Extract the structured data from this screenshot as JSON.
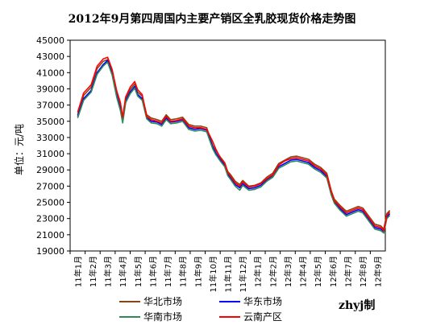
{
  "chart_data": {
    "type": "line",
    "title": "2012年9月第四周国内主要产销区全乳胶现货价格走势图",
    "ylabel": "单位：元/吨",
    "note": "zhyj制",
    "ylim": [
      19000,
      45000
    ],
    "yticks": [
      19000,
      21000,
      23000,
      25000,
      27000,
      29000,
      31000,
      33000,
      35000,
      37000,
      39000,
      41000,
      43000,
      45000
    ],
    "grid": false,
    "legend_position": "bottom",
    "x": [
      "11年1月",
      "11年2月",
      "11年3月",
      "11年4月",
      "11年5月",
      "11年6月",
      "11年7月",
      "11年8月",
      "11年9月",
      "11年10月",
      "11年11月",
      "11年12月",
      "12年1月",
      "12年2月",
      "12年3月",
      "12年4月",
      "12年5月",
      "12年6月",
      "12年7月",
      "12年8月",
      "12年9月"
    ],
    "series": [
      {
        "name": "华北市场",
        "color": "#8B4513",
        "values": [
          [
            0,
            35800
          ],
          [
            0.4,
            38200
          ],
          [
            0.9,
            39200
          ],
          [
            1.3,
            41500
          ],
          [
            1.7,
            42400
          ],
          [
            2.0,
            42600
          ],
          [
            2.3,
            41200
          ],
          [
            2.6,
            38500
          ],
          [
            2.85,
            37000
          ],
          [
            3.0,
            35200
          ],
          [
            3.2,
            37800
          ],
          [
            3.5,
            38900
          ],
          [
            3.8,
            39600
          ],
          [
            4.0,
            38600
          ],
          [
            4.3,
            38100
          ],
          [
            4.6,
            35800
          ],
          [
            4.9,
            35400
          ],
          [
            5.3,
            35200
          ],
          [
            5.6,
            35000
          ],
          [
            5.9,
            35800
          ],
          [
            6.2,
            35200
          ],
          [
            6.6,
            35300
          ],
          [
            7.0,
            35500
          ],
          [
            7.4,
            34600
          ],
          [
            7.8,
            34400
          ],
          [
            8.2,
            34400
          ],
          [
            8.6,
            34200
          ],
          [
            9.0,
            32000
          ],
          [
            9.2,
            31400
          ],
          [
            9.5,
            30600
          ],
          [
            9.8,
            29900
          ],
          [
            10.0,
            28800
          ],
          [
            10.2,
            28400
          ],
          [
            10.5,
            27600
          ],
          [
            10.8,
            27200
          ],
          [
            11.0,
            27700
          ],
          [
            11.4,
            27000
          ],
          [
            11.8,
            27100
          ],
          [
            12.2,
            27400
          ],
          [
            12.6,
            28100
          ],
          [
            13.0,
            28600
          ],
          [
            13.4,
            29800
          ],
          [
            13.8,
            30200
          ],
          [
            14.2,
            30600
          ],
          [
            14.6,
            30700
          ],
          [
            15.0,
            30500
          ],
          [
            15.4,
            30300
          ],
          [
            15.8,
            29700
          ],
          [
            16.2,
            29300
          ],
          [
            16.6,
            28600
          ],
          [
            16.9,
            26400
          ],
          [
            17.1,
            25400
          ],
          [
            17.5,
            24600
          ],
          [
            17.9,
            23900
          ],
          [
            18.3,
            24200
          ],
          [
            18.7,
            24500
          ],
          [
            19.0,
            24300
          ],
          [
            19.4,
            23300
          ],
          [
            19.8,
            22300
          ],
          [
            20.2,
            22100
          ],
          [
            20.4,
            21700
          ],
          [
            20.6,
            23600
          ],
          [
            20.8,
            24000
          ]
        ]
      },
      {
        "name": "华东市场",
        "color": "#0000FF",
        "values": [
          [
            0,
            35600
          ],
          [
            0.4,
            37800
          ],
          [
            0.9,
            38800
          ],
          [
            1.3,
            41000
          ],
          [
            1.7,
            42000
          ],
          [
            2.0,
            42500
          ],
          [
            2.3,
            40900
          ],
          [
            2.6,
            38200
          ],
          [
            2.85,
            36500
          ],
          [
            3.0,
            35000
          ],
          [
            3.2,
            37500
          ],
          [
            3.5,
            38600
          ],
          [
            3.8,
            39300
          ],
          [
            4.0,
            38300
          ],
          [
            4.3,
            37800
          ],
          [
            4.6,
            35500
          ],
          [
            4.9,
            35000
          ],
          [
            5.3,
            34900
          ],
          [
            5.6,
            34600
          ],
          [
            5.9,
            35400
          ],
          [
            6.2,
            34900
          ],
          [
            6.6,
            35000
          ],
          [
            7.0,
            35200
          ],
          [
            7.4,
            34200
          ],
          [
            7.8,
            34000
          ],
          [
            8.2,
            34100
          ],
          [
            8.6,
            33900
          ],
          [
            9.0,
            31800
          ],
          [
            9.2,
            31100
          ],
          [
            9.5,
            30300
          ],
          [
            9.8,
            29600
          ],
          [
            10.0,
            28500
          ],
          [
            10.2,
            28000
          ],
          [
            10.5,
            27200
          ],
          [
            10.8,
            26800
          ],
          [
            11.0,
            27300
          ],
          [
            11.4,
            26700
          ],
          [
            11.8,
            26800
          ],
          [
            12.2,
            27100
          ],
          [
            12.6,
            27800
          ],
          [
            13.0,
            28300
          ],
          [
            13.4,
            29400
          ],
          [
            13.8,
            29800
          ],
          [
            14.2,
            30200
          ],
          [
            14.6,
            30300
          ],
          [
            15.0,
            30100
          ],
          [
            15.4,
            29900
          ],
          [
            15.8,
            29300
          ],
          [
            16.2,
            28900
          ],
          [
            16.6,
            28200
          ],
          [
            16.9,
            26100
          ],
          [
            17.1,
            25100
          ],
          [
            17.5,
            24200
          ],
          [
            17.9,
            23500
          ],
          [
            18.3,
            23800
          ],
          [
            18.7,
            24100
          ],
          [
            19.0,
            23900
          ],
          [
            19.4,
            22900
          ],
          [
            19.8,
            21900
          ],
          [
            20.2,
            21700
          ],
          [
            20.4,
            21400
          ],
          [
            20.6,
            23200
          ],
          [
            20.8,
            23600
          ]
        ]
      },
      {
        "name": "华南市场",
        "color": "#2E8B57",
        "values": [
          [
            0,
            35400
          ],
          [
            0.4,
            37600
          ],
          [
            0.9,
            38600
          ],
          [
            1.3,
            40800
          ],
          [
            1.7,
            41800
          ],
          [
            2.0,
            42300
          ],
          [
            2.3,
            40700
          ],
          [
            2.6,
            38000
          ],
          [
            2.85,
            36300
          ],
          [
            3.0,
            34800
          ],
          [
            3.2,
            37300
          ],
          [
            3.5,
            38400
          ],
          [
            3.8,
            39100
          ],
          [
            4.0,
            38100
          ],
          [
            4.3,
            37600
          ],
          [
            4.6,
            35300
          ],
          [
            4.9,
            34800
          ],
          [
            5.3,
            34700
          ],
          [
            5.6,
            34400
          ],
          [
            5.9,
            35200
          ],
          [
            6.2,
            34700
          ],
          [
            6.6,
            34800
          ],
          [
            7.0,
            35000
          ],
          [
            7.4,
            34000
          ],
          [
            7.8,
            33800
          ],
          [
            8.2,
            33900
          ],
          [
            8.6,
            33700
          ],
          [
            9.0,
            31600
          ],
          [
            9.2,
            30900
          ],
          [
            9.5,
            30100
          ],
          [
            9.8,
            29400
          ],
          [
            10.0,
            28300
          ],
          [
            10.2,
            27800
          ],
          [
            10.5,
            27000
          ],
          [
            10.8,
            26500
          ],
          [
            11.0,
            27100
          ],
          [
            11.4,
            26500
          ],
          [
            11.8,
            26600
          ],
          [
            12.2,
            26900
          ],
          [
            12.6,
            27600
          ],
          [
            13.0,
            28100
          ],
          [
            13.4,
            29200
          ],
          [
            13.8,
            29600
          ],
          [
            14.2,
            30000
          ],
          [
            14.6,
            30100
          ],
          [
            15.0,
            29900
          ],
          [
            15.4,
            29700
          ],
          [
            15.8,
            29100
          ],
          [
            16.2,
            28700
          ],
          [
            16.6,
            28000
          ],
          [
            16.9,
            25900
          ],
          [
            17.1,
            24900
          ],
          [
            17.5,
            24000
          ],
          [
            17.9,
            23300
          ],
          [
            18.3,
            23600
          ],
          [
            18.7,
            23900
          ],
          [
            19.0,
            23700
          ],
          [
            19.4,
            22700
          ],
          [
            19.8,
            21700
          ],
          [
            20.2,
            21500
          ],
          [
            20.4,
            21200
          ],
          [
            20.6,
            23000
          ],
          [
            20.8,
            23400
          ]
        ]
      },
      {
        "name": "云南产区",
        "color": "#FF0000",
        "values": [
          [
            0,
            36100
          ],
          [
            0.4,
            38500
          ],
          [
            0.9,
            39500
          ],
          [
            1.3,
            41800
          ],
          [
            1.7,
            42700
          ],
          [
            2.0,
            42900
          ],
          [
            2.3,
            41400
          ],
          [
            2.6,
            38800
          ],
          [
            2.85,
            37300
          ],
          [
            3.0,
            35500
          ],
          [
            3.2,
            38000
          ],
          [
            3.5,
            39200
          ],
          [
            3.8,
            39900
          ],
          [
            4.0,
            38900
          ],
          [
            4.3,
            38300
          ],
          [
            4.6,
            35600
          ],
          [
            4.9,
            35200
          ],
          [
            5.3,
            35000
          ],
          [
            5.6,
            34800
          ],
          [
            5.9,
            35600
          ],
          [
            6.2,
            35000
          ],
          [
            6.6,
            35100
          ],
          [
            7.0,
            35300
          ],
          [
            7.4,
            34400
          ],
          [
            7.8,
            34200
          ],
          [
            8.2,
            34200
          ],
          [
            8.6,
            34000
          ],
          [
            9.0,
            32500
          ],
          [
            9.2,
            31600
          ],
          [
            9.5,
            30500
          ],
          [
            9.8,
            29800
          ],
          [
            10.0,
            28700
          ],
          [
            10.2,
            28200
          ],
          [
            10.5,
            27400
          ],
          [
            10.8,
            27000
          ],
          [
            11.0,
            27500
          ],
          [
            11.4,
            26900
          ],
          [
            11.8,
            27000
          ],
          [
            12.2,
            27300
          ],
          [
            12.6,
            27900
          ],
          [
            13.0,
            28400
          ],
          [
            13.4,
            29600
          ],
          [
            13.8,
            30100
          ],
          [
            14.2,
            30400
          ],
          [
            14.6,
            30500
          ],
          [
            15.0,
            30300
          ],
          [
            15.4,
            30100
          ],
          [
            15.8,
            29500
          ],
          [
            16.2,
            29100
          ],
          [
            16.6,
            28400
          ],
          [
            16.9,
            26300
          ],
          [
            17.1,
            25200
          ],
          [
            17.5,
            24400
          ],
          [
            17.9,
            23700
          ],
          [
            18.3,
            24000
          ],
          [
            18.7,
            24300
          ],
          [
            19.0,
            24100
          ],
          [
            19.4,
            23100
          ],
          [
            19.8,
            22100
          ],
          [
            20.2,
            21900
          ],
          [
            20.4,
            21500
          ],
          [
            20.6,
            23400
          ],
          [
            20.8,
            23800
          ]
        ]
      }
    ]
  }
}
